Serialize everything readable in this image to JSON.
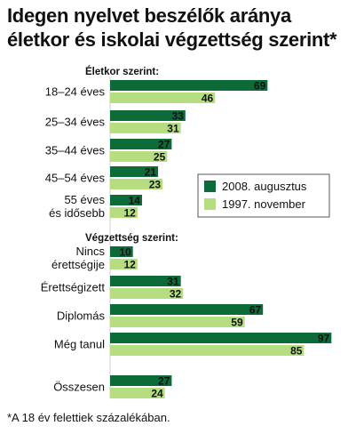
{
  "title": [
    "Idegen nyelvet beszélők aránya",
    "életkor és iskolai végzettség szerint*"
  ],
  "footnote": "*A 18 év felettiek százalékában.",
  "colors": {
    "dark": "#0d6b3a",
    "light": "#b6dd7f",
    "text": "#111111"
  },
  "chart_data": {
    "type": "bar",
    "orientation": "horizontal",
    "title": "Idegen nyelvet beszélők aránya életkor és iskolai végzettség szerint*",
    "series_names": [
      "2008. augusztus",
      "1997. november"
    ],
    "legend_placement": "right, middle",
    "xlim": [
      0,
      97
    ],
    "groups": [
      {
        "heading": "Életkor szerint:",
        "categories": [
          {
            "label": [
              "18–24 éves"
            ],
            "values": [
              69,
              46
            ]
          },
          {
            "label": [
              "25–34 éves"
            ],
            "values": [
              33,
              31
            ]
          },
          {
            "label": [
              "35–44 éves"
            ],
            "values": [
              27,
              25
            ]
          },
          {
            "label": [
              "45–54 éves"
            ],
            "values": [
              21,
              23
            ]
          },
          {
            "label": [
              "55 éves",
              "és idősebb"
            ],
            "values": [
              14,
              12
            ]
          }
        ]
      },
      {
        "heading": "Végzettség szerint:",
        "categories": [
          {
            "label": [
              "Nincs",
              "érettségije"
            ],
            "values": [
              10,
              12
            ]
          },
          {
            "label": [
              "Érettségizett"
            ],
            "values": [
              31,
              32
            ]
          },
          {
            "label": [
              "Diplomás"
            ],
            "values": [
              67,
              59
            ]
          },
          {
            "label": [
              "Még tanul"
            ],
            "values": [
              97,
              85
            ]
          }
        ]
      },
      {
        "heading": "",
        "categories": [
          {
            "label": [
              "Összesen"
            ],
            "values": [
              27,
              24
            ]
          }
        ]
      }
    ]
  }
}
